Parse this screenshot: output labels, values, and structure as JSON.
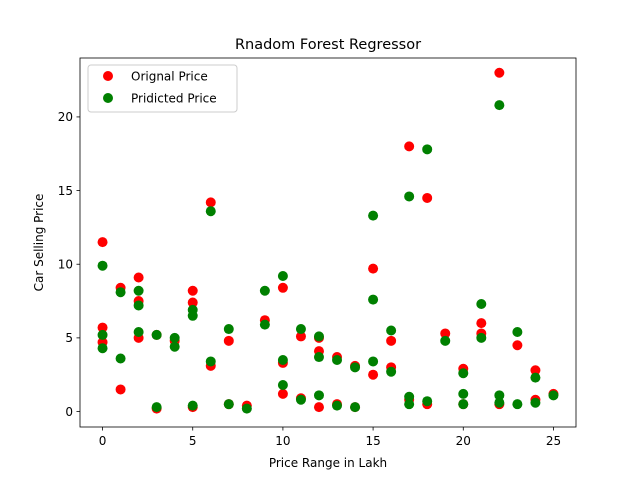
{
  "chart_data": {
    "type": "scatter",
    "title": "Rnadom Forest Regressor",
    "xlabel": "Price Range in Lakh",
    "ylabel": "Car Selling Price",
    "xlim": [
      -1.25,
      26.25
    ],
    "ylim": [
      -1.05,
      24.0
    ],
    "xticks": [
      0,
      5,
      10,
      15,
      20,
      25
    ],
    "yticks": [
      0,
      5,
      10,
      15,
      20
    ],
    "grid": false,
    "legend_position": "top-left",
    "series": [
      {
        "name": "Orignal Price",
        "color": "#ff0000",
        "points": [
          [
            0,
            11.5
          ],
          [
            0,
            5.7
          ],
          [
            0,
            4.7
          ],
          [
            1,
            8.4
          ],
          [
            1,
            1.5
          ],
          [
            2,
            9.1
          ],
          [
            2,
            7.5
          ],
          [
            2,
            5.0
          ],
          [
            3,
            5.2
          ],
          [
            3,
            0.2
          ],
          [
            4,
            4.8
          ],
          [
            5,
            8.2
          ],
          [
            5,
            7.4
          ],
          [
            5,
            0.3
          ],
          [
            6,
            14.2
          ],
          [
            6,
            3.1
          ],
          [
            7,
            4.8
          ],
          [
            7,
            0.5
          ],
          [
            8,
            0.4
          ],
          [
            9,
            6.2
          ],
          [
            10,
            8.4
          ],
          [
            10,
            3.3
          ],
          [
            10,
            1.2
          ],
          [
            11,
            5.1
          ],
          [
            11,
            0.9
          ],
          [
            12,
            5.0
          ],
          [
            12,
            4.1
          ],
          [
            12,
            0.3
          ],
          [
            13,
            3.7
          ],
          [
            13,
            0.5
          ],
          [
            14,
            3.1
          ],
          [
            14,
            0.3
          ],
          [
            15,
            9.7
          ],
          [
            15,
            2.5
          ],
          [
            16,
            4.8
          ],
          [
            16,
            3.0
          ],
          [
            17,
            18.0
          ],
          [
            17,
            0.8
          ],
          [
            18,
            14.5
          ],
          [
            18,
            0.5
          ],
          [
            19,
            5.3
          ],
          [
            20,
            2.9
          ],
          [
            20,
            0.5
          ],
          [
            21,
            6.0
          ],
          [
            21,
            5.3
          ],
          [
            22,
            23.0
          ],
          [
            22,
            0.5
          ],
          [
            23,
            4.5
          ],
          [
            24,
            2.8
          ],
          [
            24,
            0.8
          ],
          [
            25,
            1.2
          ]
        ]
      },
      {
        "name": "Pridicted Price",
        "color": "#008000",
        "points": [
          [
            0,
            9.9
          ],
          [
            0,
            5.2
          ],
          [
            0,
            4.3
          ],
          [
            1,
            8.1
          ],
          [
            1,
            3.6
          ],
          [
            2,
            8.2
          ],
          [
            2,
            7.2
          ],
          [
            2,
            5.4
          ],
          [
            3,
            5.2
          ],
          [
            3,
            0.3
          ],
          [
            4,
            5.0
          ],
          [
            4,
            4.4
          ],
          [
            5,
            6.9
          ],
          [
            5,
            6.5
          ],
          [
            5,
            0.4
          ],
          [
            6,
            13.6
          ],
          [
            6,
            3.4
          ],
          [
            7,
            5.6
          ],
          [
            7,
            0.5
          ],
          [
            8,
            0.2
          ],
          [
            9,
            8.2
          ],
          [
            9,
            5.9
          ],
          [
            10,
            9.2
          ],
          [
            10,
            3.5
          ],
          [
            10,
            1.8
          ],
          [
            11,
            5.6
          ],
          [
            11,
            0.8
          ],
          [
            12,
            5.1
          ],
          [
            12,
            3.7
          ],
          [
            12,
            1.1
          ],
          [
            13,
            3.5
          ],
          [
            13,
            0.4
          ],
          [
            14,
            3.0
          ],
          [
            14,
            0.3
          ],
          [
            15,
            13.3
          ],
          [
            15,
            7.6
          ],
          [
            15,
            3.4
          ],
          [
            16,
            5.5
          ],
          [
            16,
            2.7
          ],
          [
            17,
            14.6
          ],
          [
            17,
            1.0
          ],
          [
            17,
            0.5
          ],
          [
            18,
            17.8
          ],
          [
            18,
            0.7
          ],
          [
            19,
            4.8
          ],
          [
            20,
            2.6
          ],
          [
            20,
            1.2
          ],
          [
            20,
            0.5
          ],
          [
            21,
            7.3
          ],
          [
            21,
            5.0
          ],
          [
            22,
            20.8
          ],
          [
            22,
            1.1
          ],
          [
            22,
            0.6
          ],
          [
            23,
            5.4
          ],
          [
            23,
            0.5
          ],
          [
            24,
            2.3
          ],
          [
            24,
            0.6
          ],
          [
            25,
            1.1
          ]
        ]
      }
    ]
  }
}
